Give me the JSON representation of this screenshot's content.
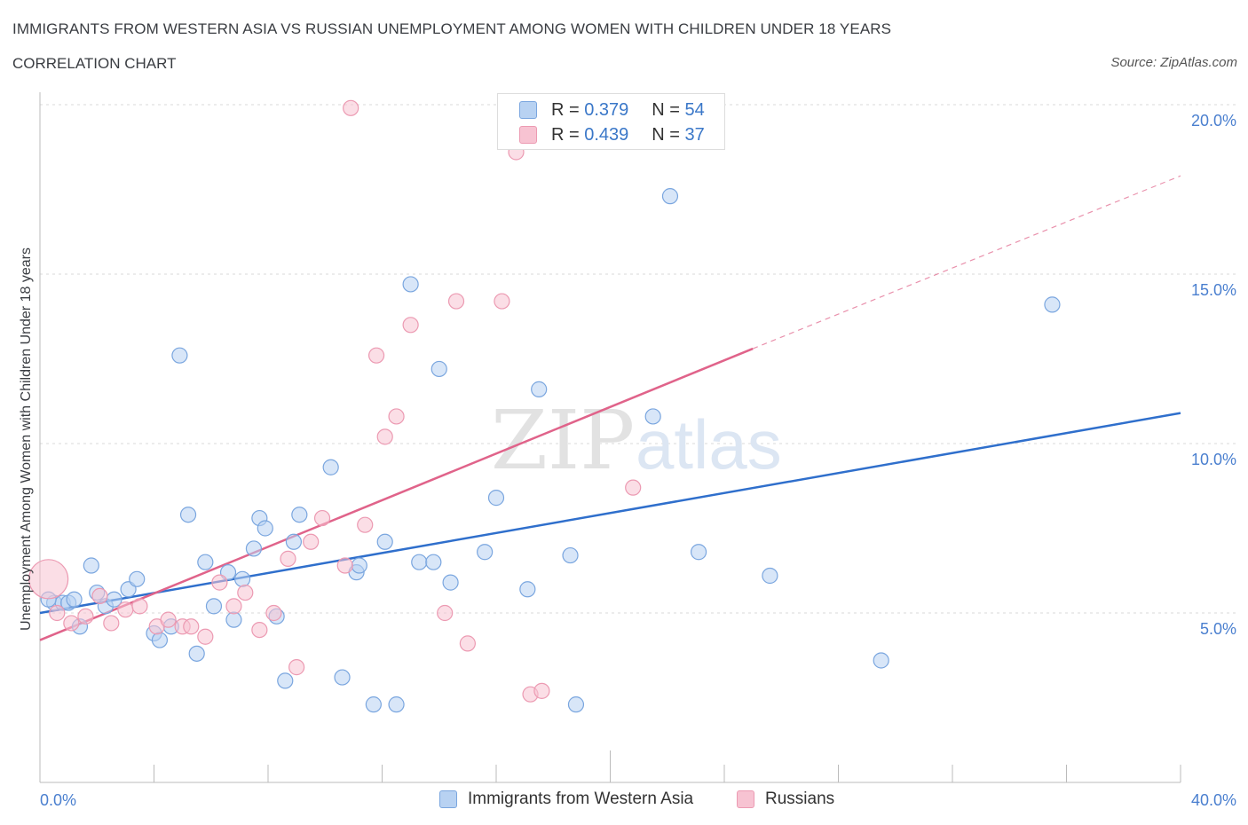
{
  "title": "IMMIGRANTS FROM WESTERN ASIA VS RUSSIAN UNEMPLOYMENT AMONG WOMEN WITH CHILDREN UNDER 18 YEARS",
  "subtitle": "CORRELATION CHART",
  "source": "Source: ZipAtlas.com",
  "watermark": {
    "zip": "ZIP",
    "atlas": "atlas"
  },
  "legend_top": {
    "rows": [
      {
        "r_label": "R = ",
        "r_value": "0.379",
        "n_label": "N = ",
        "n_value": "54"
      },
      {
        "r_label": "R = ",
        "r_value": "0.439",
        "n_label": "N = ",
        "n_value": "37"
      }
    ]
  },
  "colors": {
    "blue_fill": "#b8d2f2",
    "blue_stroke": "#7aa6df",
    "blue_line": "#2f6fcc",
    "pink_fill": "#f7c3d2",
    "pink_stroke": "#ec9ab2",
    "pink_line": "#e0638a",
    "tick_text": "#4a7fcf",
    "grid": "#d9d9d9"
  },
  "chart_data": {
    "type": "scatter",
    "title": "IMMIGRANTS FROM WESTERN ASIA VS RUSSIAN UNEMPLOYMENT AMONG WOMEN WITH CHILDREN UNDER 18 YEARS",
    "xlabel": "",
    "ylabel": "Unemployment Among Women with Children Under 18 years",
    "xlim": [
      0,
      40
    ],
    "ylim": [
      0,
      20
    ],
    "x_tick_labels": [
      "0.0%",
      "40.0%"
    ],
    "y_ticks": [
      5,
      10,
      15,
      20
    ],
    "y_tick_labels": [
      "5.0%",
      "10.0%",
      "15.0%",
      "20.0%"
    ],
    "grid": true,
    "legend": "bottom-center",
    "series": [
      {
        "name": "Immigrants from Western Asia",
        "R": 0.379,
        "N": 54,
        "trend": {
          "x0": 0,
          "y0": 5.0,
          "x1": 40,
          "y1": 10.9,
          "dashed_from": null
        },
        "points": [
          [
            0.5,
            5.3
          ],
          [
            0.8,
            5.3
          ],
          [
            1.0,
            5.3
          ],
          [
            1.2,
            5.4
          ],
          [
            1.4,
            4.6
          ],
          [
            1.8,
            6.4
          ],
          [
            2.0,
            5.6
          ],
          [
            2.3,
            5.2
          ],
          [
            2.6,
            5.4
          ],
          [
            3.1,
            5.7
          ],
          [
            3.4,
            6.0
          ],
          [
            4.0,
            4.4
          ],
          [
            4.2,
            4.2
          ],
          [
            4.6,
            4.6
          ],
          [
            4.9,
            12.6
          ],
          [
            5.2,
            7.9
          ],
          [
            5.5,
            3.8
          ],
          [
            5.8,
            6.5
          ],
          [
            6.1,
            5.2
          ],
          [
            6.6,
            6.2
          ],
          [
            6.8,
            4.8
          ],
          [
            7.1,
            6.0
          ],
          [
            7.5,
            6.9
          ],
          [
            7.7,
            7.8
          ],
          [
            7.9,
            7.5
          ],
          [
            8.3,
            4.9
          ],
          [
            8.6,
            3.0
          ],
          [
            8.9,
            7.1
          ],
          [
            9.1,
            7.9
          ],
          [
            10.2,
            9.3
          ],
          [
            10.6,
            3.1
          ],
          [
            11.1,
            6.2
          ],
          [
            11.2,
            6.4
          ],
          [
            11.7,
            2.3
          ],
          [
            12.1,
            7.1
          ],
          [
            12.5,
            2.3
          ],
          [
            13.0,
            14.7
          ],
          [
            13.3,
            6.5
          ],
          [
            13.8,
            6.5
          ],
          [
            14.0,
            12.2
          ],
          [
            14.4,
            5.9
          ],
          [
            15.6,
            6.8
          ],
          [
            16.0,
            8.4
          ],
          [
            17.1,
            5.7
          ],
          [
            17.5,
            11.6
          ],
          [
            18.6,
            6.7
          ],
          [
            18.8,
            2.3
          ],
          [
            21.5,
            10.8
          ],
          [
            22.1,
            17.3
          ],
          [
            23.1,
            6.8
          ],
          [
            25.6,
            6.1
          ],
          [
            29.5,
            3.6
          ],
          [
            35.5,
            14.1
          ],
          [
            0.3,
            5.4
          ]
        ]
      },
      {
        "name": "Russians",
        "R": 0.439,
        "N": 37,
        "trend": {
          "x0": 0,
          "y0": 4.2,
          "x1": 25,
          "y1": 12.8,
          "dashed_from": 25,
          "dashed_x1": 40,
          "dashed_y1": 17.9
        },
        "points": [
          [
            0.3,
            6.0
          ],
          [
            0.6,
            5.0
          ],
          [
            1.1,
            4.7
          ],
          [
            1.6,
            4.9
          ],
          [
            2.1,
            5.5
          ],
          [
            2.5,
            4.7
          ],
          [
            3.0,
            5.1
          ],
          [
            3.5,
            5.2
          ],
          [
            4.1,
            4.6
          ],
          [
            4.5,
            4.8
          ],
          [
            5.0,
            4.6
          ],
          [
            5.3,
            4.6
          ],
          [
            5.8,
            4.3
          ],
          [
            6.3,
            5.9
          ],
          [
            6.8,
            5.2
          ],
          [
            7.2,
            5.6
          ],
          [
            7.7,
            4.5
          ],
          [
            8.2,
            5.0
          ],
          [
            8.7,
            6.6
          ],
          [
            9.0,
            3.4
          ],
          [
            9.5,
            7.1
          ],
          [
            9.9,
            7.8
          ],
          [
            10.7,
            6.4
          ],
          [
            11.4,
            7.6
          ],
          [
            11.8,
            12.6
          ],
          [
            12.1,
            10.2
          ],
          [
            12.5,
            10.8
          ],
          [
            13.0,
            13.5
          ],
          [
            14.2,
            5.0
          ],
          [
            14.6,
            14.2
          ],
          [
            15.0,
            4.1
          ],
          [
            10.9,
            19.9
          ],
          [
            16.2,
            14.2
          ],
          [
            16.7,
            18.6
          ],
          [
            17.2,
            2.6
          ],
          [
            17.6,
            2.7
          ],
          [
            20.8,
            8.7
          ]
        ]
      }
    ]
  },
  "bottom_legend": [
    {
      "label": "Immigrants from Western Asia"
    },
    {
      "label": "Russians"
    }
  ]
}
